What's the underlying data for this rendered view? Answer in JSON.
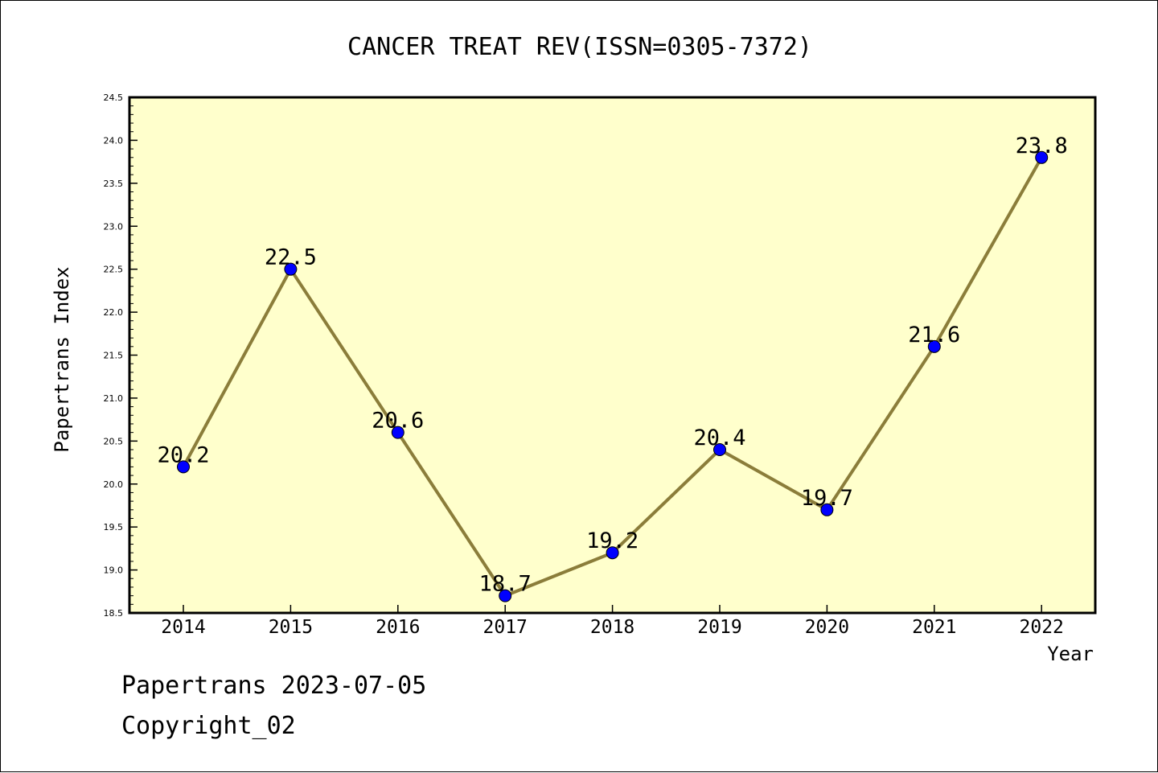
{
  "chart_data": {
    "type": "line",
    "title": "CANCER TREAT REV(ISSN=0305-7372)",
    "xlabel": "Year",
    "ylabel": "Papertrans Index",
    "categories": [
      "2014",
      "2015",
      "2016",
      "2017",
      "2018",
      "2019",
      "2020",
      "2021",
      "2022"
    ],
    "series": [
      {
        "values": [
          20.2,
          22.5,
          20.6,
          18.7,
          19.2,
          20.4,
          19.7,
          21.6,
          23.8
        ]
      }
    ],
    "data_labels": [
      "20.2",
      "22.5",
      "20.6",
      "18.7",
      "19.2",
      "20.4",
      "19.7",
      "21.6",
      "23.8"
    ],
    "ylim": [
      18.5,
      24.5
    ],
    "yticks": [
      "18.5",
      "19.0",
      "19.5",
      "20.0",
      "20.5",
      "21.0",
      "21.5",
      "22.0",
      "22.5",
      "23.0",
      "23.5",
      "24.0",
      "24.5"
    ],
    "grid": false,
    "legend": false
  },
  "colors": {
    "plot_background": "#ffffcc",
    "line": "#8b7d3a",
    "marker": "#0000ff",
    "axis": "#000000"
  },
  "footer": {
    "date_text": "Papertrans 2023-07-05",
    "copyright_text": "Copyright_02"
  }
}
